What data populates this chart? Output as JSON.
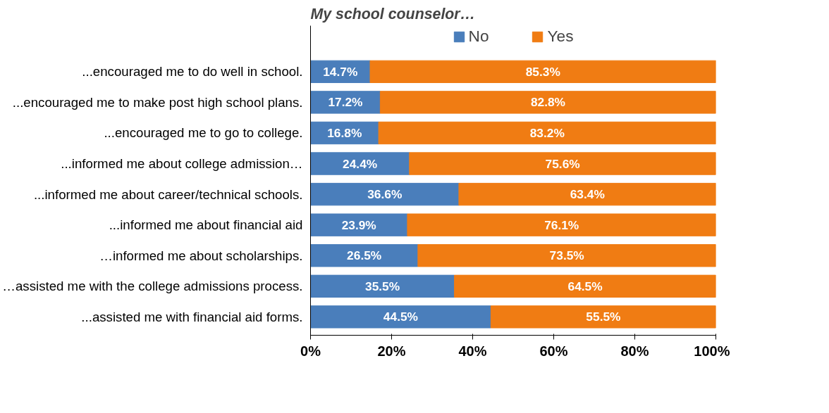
{
  "chart_data": {
    "type": "bar",
    "orientation": "horizontal",
    "stacked": true,
    "title": "My school counselor…",
    "categories": [
      "...encouraged me to do well in school.",
      "...encouraged me to make post high school plans.",
      "...encouraged me to go to college.",
      "...informed me about college admission…",
      "...informed me about career/technical schools.",
      "...informed me about financial aid",
      "…informed me about scholarships.",
      "…assisted me with the college admissions process.",
      "...assisted me with financial aid forms."
    ],
    "series": [
      {
        "name": "No",
        "color": "#4a7ebb",
        "values": [
          14.7,
          17.2,
          16.8,
          24.4,
          36.6,
          23.9,
          26.5,
          35.5,
          44.5
        ],
        "value_labels": [
          "14.7%",
          "17.2%",
          "16.8%",
          "24.4%",
          "36.6%",
          "23.9%",
          "26.5%",
          "35.5%",
          "44.5%"
        ]
      },
      {
        "name": "Yes",
        "color": "#f07c13",
        "values": [
          85.3,
          82.8,
          83.2,
          75.6,
          63.4,
          76.1,
          73.5,
          64.5,
          55.5
        ],
        "value_labels": [
          "85.3%",
          "82.8%",
          "83.2%",
          "75.6%",
          "63.4%",
          "76.1%",
          "73.5%",
          "64.5%",
          "55.5%"
        ]
      }
    ],
    "xlim": [
      0,
      100
    ],
    "xticks": [
      {
        "value": 0,
        "label": "0%"
      },
      {
        "value": 20,
        "label": "20%"
      },
      {
        "value": 40,
        "label": "40%"
      },
      {
        "value": 60,
        "label": "60%"
      },
      {
        "value": 80,
        "label": "80%"
      },
      {
        "value": 100,
        "label": "100%"
      }
    ],
    "legend": "top",
    "grid": false
  }
}
